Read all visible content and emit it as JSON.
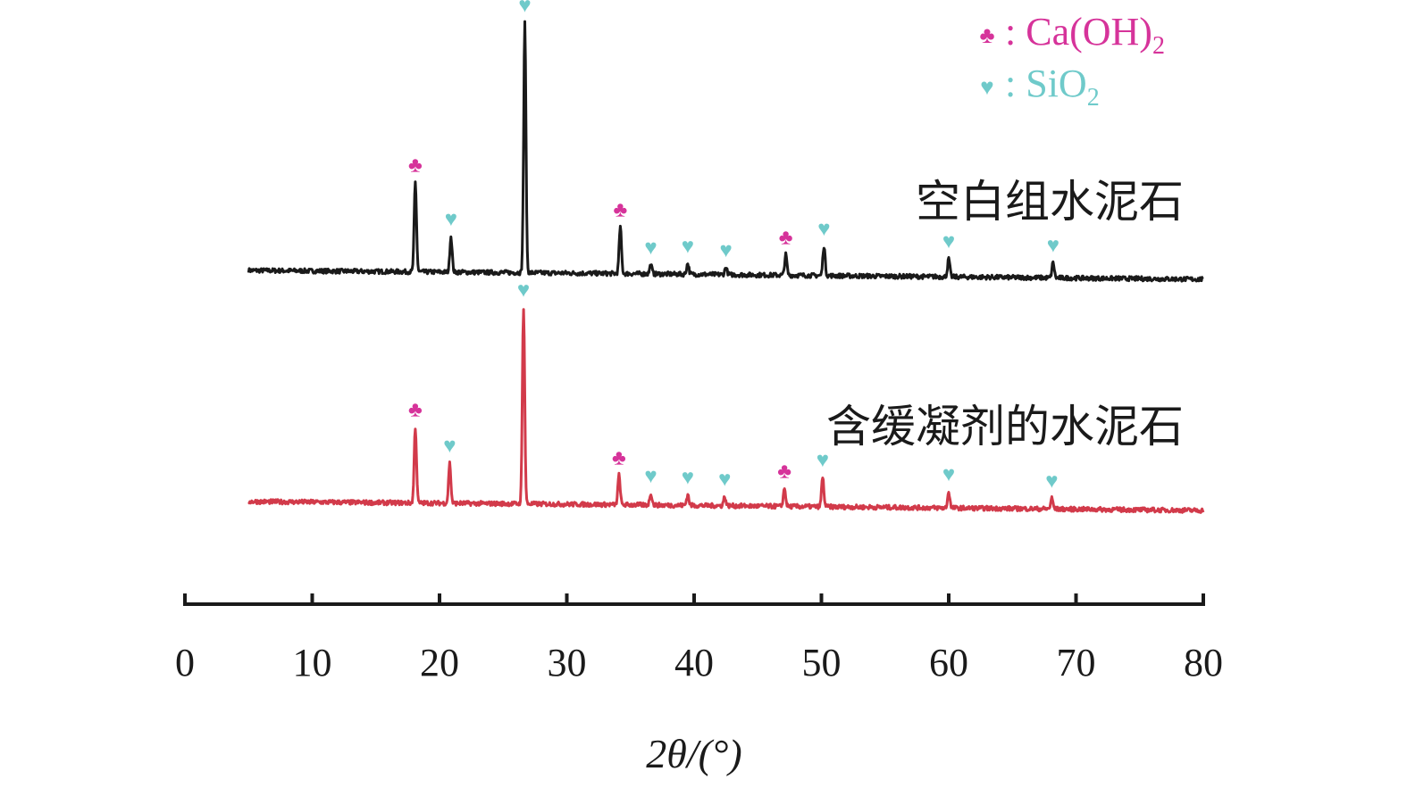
{
  "chart_data": {
    "type": "line",
    "title": "",
    "xlabel": "2θ/(°)",
    "ylabel": "",
    "xlim": [
      0,
      80
    ],
    "xticks": [
      0,
      10,
      20,
      30,
      40,
      50,
      60,
      70,
      80
    ],
    "yaxis_visible": false,
    "grid": false,
    "legend_position": "top-right",
    "legend": [
      {
        "symbol": "♣",
        "prefix": ": ",
        "label": "Ca(OH)",
        "subscript": "2",
        "color": "#d6339a"
      },
      {
        "symbol": "♥",
        "prefix": ": ",
        "label": "SiO",
        "subscript": "2",
        "color": "#6fcaca"
      }
    ],
    "series": [
      {
        "name": "空白组水泥石",
        "color": "#1a1a1a",
        "baseline": [
          [
            5,
            100
          ],
          [
            30,
            97
          ],
          [
            80,
            90
          ]
        ],
        "peaks": [
          {
            "x": 18.1,
            "height": 100,
            "marker": "♣"
          },
          {
            "x": 20.9,
            "height": 40,
            "marker": "♥"
          },
          {
            "x": 26.7,
            "height": 280,
            "marker": "♥"
          },
          {
            "x": 34.2,
            "height": 52,
            "marker": "♣"
          },
          {
            "x": 36.6,
            "height": 10,
            "marker": "♥"
          },
          {
            "x": 39.5,
            "height": 12,
            "marker": "♥"
          },
          {
            "x": 42.5,
            "height": 8,
            "marker": "♥"
          },
          {
            "x": 47.2,
            "height": 23,
            "marker": "♣"
          },
          {
            "x": 50.2,
            "height": 33,
            "marker": "♥"
          },
          {
            "x": 60.0,
            "height": 20,
            "marker": "♥"
          },
          {
            "x": 68.2,
            "height": 17,
            "marker": "♥"
          }
        ]
      },
      {
        "name": "含缓凝剂的水泥石",
        "color": "#d23a4a",
        "baseline": [
          [
            5,
            0
          ],
          [
            30,
            -3
          ],
          [
            80,
            -10
          ]
        ],
        "peaks": [
          {
            "x": 18.1,
            "height": 85,
            "marker": "♣"
          },
          {
            "x": 20.8,
            "height": 45,
            "marker": "♥"
          },
          {
            "x": 26.6,
            "height": 220,
            "marker": "♥"
          },
          {
            "x": 34.1,
            "height": 33,
            "marker": "♣"
          },
          {
            "x": 36.6,
            "height": 13,
            "marker": "♥"
          },
          {
            "x": 39.5,
            "height": 12,
            "marker": "♥"
          },
          {
            "x": 42.4,
            "height": 10,
            "marker": "♥"
          },
          {
            "x": 47.1,
            "height": 20,
            "marker": "♣"
          },
          {
            "x": 50.1,
            "height": 33,
            "marker": "♥"
          },
          {
            "x": 60.0,
            "height": 18,
            "marker": "♥"
          },
          {
            "x": 68.1,
            "height": 12,
            "marker": "♥"
          }
        ]
      }
    ]
  }
}
